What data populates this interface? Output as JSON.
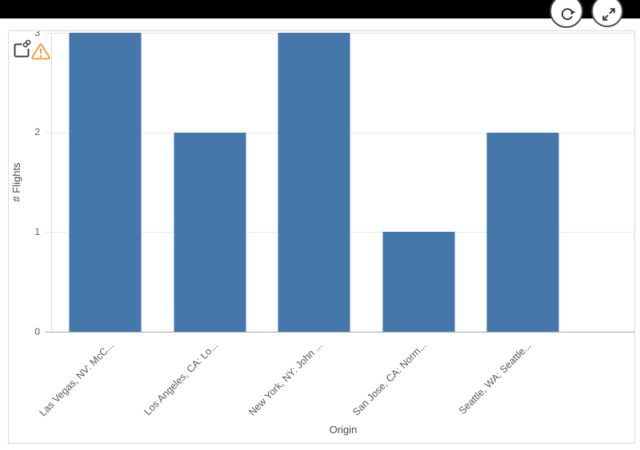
{
  "toolbar": {
    "buttons": [
      {
        "name": "refresh-button",
        "icon": "refresh-icon"
      },
      {
        "name": "expand-button",
        "icon": "expand-icon"
      }
    ]
  },
  "indicators": {
    "icons": [
      "linked-object-icon",
      "warning-icon"
    ]
  },
  "colors": {
    "bar": "#4477aa",
    "warning": "#f0962e",
    "topbar": "#000000",
    "gridline": "#e6e6e6",
    "axis_text": "#595959"
  },
  "chart_data": {
    "type": "bar",
    "categories": [
      "Las Vegas, NV: McC...",
      "Los Angeles, CA: Lo...",
      "New York, NY: John ...",
      "San Jose, CA: Norm...",
      "Seattle, WA: Seattle..."
    ],
    "values": [
      3,
      2,
      3,
      1,
      2
    ],
    "title": "",
    "xlabel": "Origin",
    "ylabel": "# Flights",
    "ylim": [
      0,
      3
    ],
    "yticks": [
      0,
      1,
      2,
      3
    ],
    "grid": true,
    "legend": false,
    "bar_color": "#4477aa"
  }
}
